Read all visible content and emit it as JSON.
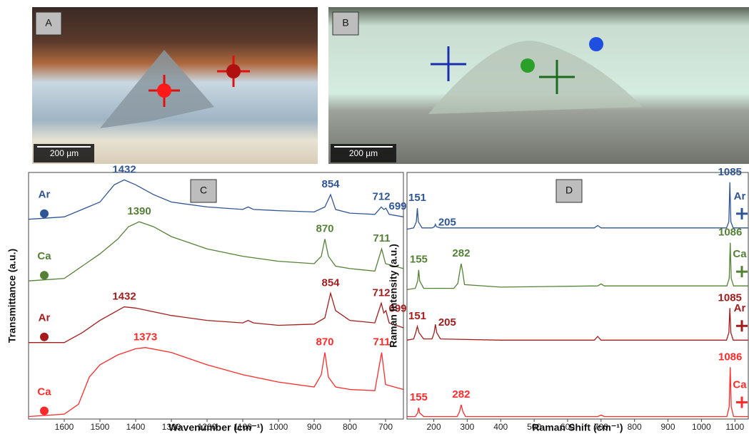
{
  "panels": [
    {
      "label": "A",
      "scale_bar": "200 µm"
    },
    {
      "label": "B",
      "scale_bar": "200 µm"
    }
  ],
  "chart_data": [
    {
      "type": "line",
      "label": "C",
      "y_label": "Transmittance (a.u.)",
      "x_label": "Wavenumber (cm⁻¹)",
      "xlim": [
        1700,
        650
      ],
      "xticks": [
        1600,
        1500,
        1400,
        1300,
        1200,
        1100,
        1000,
        900,
        800,
        700
      ],
      "ylim": [
        0,
        100
      ],
      "series": [
        {
          "name": "Ar",
          "color": "#2f5597",
          "marker": "circle",
          "x": [
            1700,
            1600,
            1500,
            1460,
            1432,
            1400,
            1350,
            1300,
            1200,
            1100,
            1085,
            1070,
            1000,
            900,
            870,
            854,
            840,
            800,
            730,
            712,
            705,
            699,
            690,
            650
          ],
          "values": [
            81,
            82,
            88,
            95,
            97,
            95,
            91,
            88,
            86,
            85,
            86,
            85,
            84.5,
            84,
            86,
            91,
            85,
            83.5,
            83,
            86,
            85,
            85.5,
            83,
            82
          ],
          "peaks": [
            1432,
            854,
            712,
            699
          ]
        },
        {
          "name": "Ca",
          "color": "#548235",
          "marker": "circle",
          "x": [
            1700,
            1600,
            1550,
            1500,
            1450,
            1420,
            1390,
            1350,
            1300,
            1200,
            1100,
            1000,
            900,
            880,
            870,
            860,
            840,
            800,
            730,
            711,
            700,
            650
          ],
          "values": [
            56,
            57,
            62,
            67,
            73,
            78,
            80,
            78,
            74,
            69,
            66,
            64,
            63,
            66,
            73,
            66,
            62,
            61,
            60,
            69,
            63,
            61
          ],
          "peaks": [
            1390,
            870,
            711
          ]
        },
        {
          "name": "Ar",
          "color": "#a61c1c",
          "marker": "circle",
          "x": [
            1700,
            1600,
            1550,
            1500,
            1432,
            1400,
            1300,
            1200,
            1100,
            1085,
            1070,
            1000,
            900,
            870,
            854,
            840,
            800,
            730,
            712,
            705,
            699,
            690,
            650
          ],
          "values": [
            31,
            31,
            35,
            40,
            45.5,
            45,
            42,
            40,
            39,
            40,
            39,
            38,
            38.5,
            41,
            51,
            44,
            40,
            39,
            47,
            43,
            44,
            39,
            37
          ],
          "peaks": [
            1432,
            854,
            712,
            699
          ]
        },
        {
          "name": "Ca",
          "color": "#ff2a2a",
          "marker": "circle",
          "x": [
            1700,
            1600,
            1560,
            1530,
            1500,
            1450,
            1400,
            1373,
            1300,
            1200,
            1100,
            1000,
            900,
            880,
            870,
            860,
            840,
            800,
            730,
            711,
            700,
            650
          ],
          "values": [
            1,
            2,
            6,
            17,
            22,
            26,
            28.5,
            29,
            27,
            22,
            18,
            15,
            13,
            18,
            27,
            17,
            13,
            12,
            11.5,
            27,
            14,
            12
          ],
          "peaks": [
            1373,
            870,
            711
          ]
        }
      ]
    },
    {
      "type": "line",
      "label": "D",
      "y_label": "Raman Intensity (a.u.)",
      "x_label": "Raman Shift (cm⁻¹)",
      "xlim": [
        120,
        1140
      ],
      "xticks": [
        200,
        300,
        400,
        500,
        600,
        700,
        800,
        900,
        1000,
        1100
      ],
      "ylim": [
        0,
        100
      ],
      "series": [
        {
          "name": "Ar",
          "color": "#2f5597",
          "marker": "cross",
          "x": [
            120,
            140,
            148,
            151,
            154,
            165,
            195,
            202,
            205,
            208,
            220,
            400,
            680,
            690,
            700,
            900,
            1075,
            1082,
            1085,
            1088,
            1095,
            1140
          ],
          "values": [
            77,
            77.5,
            80,
            85.5,
            80,
            77.5,
            77.5,
            78,
            79,
            78,
            77.5,
            77.5,
            77.5,
            78.5,
            77.5,
            77.5,
            77.5,
            80,
            96,
            80,
            77.5,
            77.5
          ],
          "peaks": [
            151,
            205,
            1085
          ]
        },
        {
          "name": "Ca",
          "color": "#548235",
          "marker": "cross",
          "x": [
            120,
            145,
            152,
            155,
            158,
            170,
            260,
            272,
            278,
            282,
            286,
            292,
            400,
            690,
            700,
            710,
            900,
            1076,
            1083,
            1086,
            1089,
            1096,
            1140
          ],
          "values": [
            52.5,
            53,
            56,
            60.5,
            56,
            53,
            53,
            55,
            60,
            63,
            60,
            54.5,
            53.5,
            54,
            54.8,
            54,
            54,
            54,
            57,
            71.5,
            57,
            54,
            54
          ],
          "peaks": [
            155,
            282,
            1086
          ]
        },
        {
          "name": "Ar",
          "color": "#a61c1c",
          "marker": "cross",
          "x": [
            120,
            140,
            146,
            151,
            156,
            170,
            195,
            201,
            205,
            209,
            220,
            400,
            680,
            690,
            700,
            900,
            1075,
            1082,
            1085,
            1088,
            1095,
            1140
          ],
          "values": [
            32,
            32.5,
            35,
            37.6,
            35,
            32.5,
            32.5,
            35,
            38.4,
            35,
            32.5,
            32,
            32,
            33.5,
            32,
            32,
            32,
            35,
            45,
            35,
            32,
            32
          ],
          "peaks": [
            151,
            205,
            1085
          ]
        },
        {
          "name": "Ca",
          "color": "#ff2a2a",
          "marker": "cross",
          "x": [
            120,
            145,
            152,
            155,
            158,
            170,
            270,
            277,
            282,
            287,
            295,
            400,
            690,
            700,
            710,
            900,
            1076,
            1083,
            1086,
            1089,
            1096,
            1140
          ],
          "values": [
            1,
            1,
            2.5,
            4.6,
            2.5,
            1,
            1,
            3,
            5.8,
            3,
            1,
            1,
            1,
            1.6,
            1,
            1,
            1,
            5,
            21,
            5,
            1,
            1
          ],
          "peaks": [
            155,
            282,
            1086
          ]
        }
      ]
    }
  ]
}
